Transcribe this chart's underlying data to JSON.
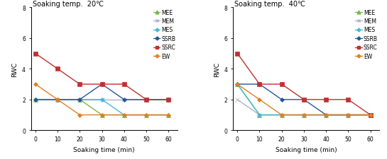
{
  "x": [
    0,
    10,
    20,
    30,
    40,
    50,
    60
  ],
  "chart1": {
    "title": "Soaking temp.  20℃",
    "series": {
      "MEE": [
        2,
        2,
        2,
        1,
        1,
        1,
        1
      ],
      "MEM": [
        2,
        2,
        2,
        2,
        2,
        2,
        2
      ],
      "MES": [
        2,
        2,
        2,
        2,
        1,
        1,
        1
      ],
      "SSRB": [
        2,
        2,
        2,
        3,
        2,
        2,
        2
      ],
      "SSRC": [
        5,
        4,
        3,
        3,
        3,
        2,
        2
      ],
      "EW": [
        3,
        2,
        1,
        1,
        1,
        1,
        1
      ]
    }
  },
  "chart2": {
    "title": "Soaking temp.  40℃",
    "series": {
      "MEE": [
        3,
        1,
        1,
        1,
        1,
        1,
        1
      ],
      "MEM": [
        2,
        1,
        1,
        1,
        1,
        1,
        1
      ],
      "MES": [
        3,
        1,
        1,
        1,
        1,
        1,
        1
      ],
      "SSRB": [
        3,
        3,
        2,
        2,
        1,
        1,
        1
      ],
      "SSRC": [
        5,
        3,
        3,
        2,
        2,
        2,
        1
      ],
      "EW": [
        3,
        2,
        1,
        1,
        1,
        1,
        1
      ]
    }
  },
  "colors": {
    "MEE": "#7ab648",
    "MEM": "#b0b0c8",
    "MES": "#45b8d8",
    "SSRB": "#2255a0",
    "SSRC": "#c03030",
    "EW": "#e08020"
  },
  "markers": {
    "MEE": "^",
    "MEM": "x",
    "MES": "D",
    "SSRB": "D",
    "SSRC": "s",
    "EW": "D"
  },
  "markersizes": {
    "MEE": 4,
    "MEM": 4,
    "MES": 3,
    "SSRB": 3,
    "SSRC": 4,
    "EW": 3
  },
  "ylabel": "RWC",
  "xlabel": "Soaking time (min)",
  "ylim": [
    0,
    8
  ],
  "yticks": [
    0,
    2,
    4,
    6,
    8
  ],
  "xticks": [
    0,
    10,
    20,
    30,
    40,
    50,
    60
  ]
}
